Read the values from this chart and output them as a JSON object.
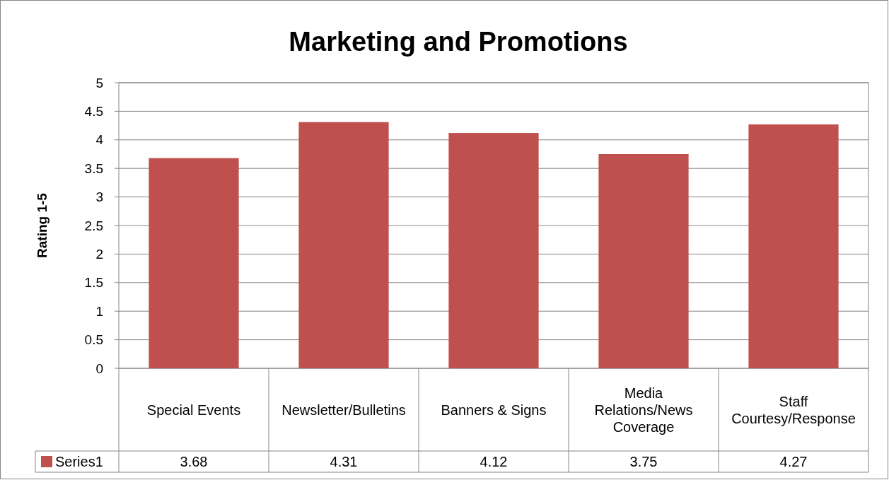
{
  "chart_data": {
    "type": "bar",
    "title": "Marketing and Promotions",
    "ylabel": "Rating 1-5",
    "categories": [
      "Special Events",
      "Newsletter/Bulletins",
      "Banners & Signs",
      "Media Relations/News Coverage",
      "Staff Courtesy/Response"
    ],
    "series": [
      {
        "name": "Series1",
        "color": "#c0504d",
        "values": [
          3.68,
          4.31,
          4.12,
          3.75,
          4.27
        ]
      }
    ],
    "ylim": [
      0,
      5
    ],
    "yticks": [
      0,
      0.5,
      1,
      1.5,
      2,
      2.5,
      3,
      3.5,
      4,
      4.5,
      5
    ],
    "grid": "y",
    "data_labels": true,
    "legend": "bottom left"
  }
}
